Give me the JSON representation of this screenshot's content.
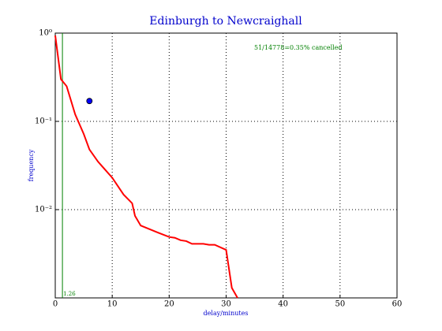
{
  "chart_data": {
    "type": "line",
    "title": "Edinburgh to Newcraighall",
    "xlabel": "delay/minutes",
    "ylabel": "frequency",
    "x": [
      0,
      1,
      2,
      3.5,
      5,
      6,
      7.5,
      10,
      12,
      13.5,
      14,
      15,
      18,
      20,
      21,
      22,
      23,
      24,
      26,
      27,
      28,
      30,
      31,
      32
    ],
    "values": [
      0.94,
      0.3,
      0.25,
      0.12,
      0.072,
      0.048,
      0.035,
      0.023,
      0.0148,
      0.0118,
      0.0085,
      0.0066,
      0.0055,
      0.0049,
      0.0048,
      0.0045,
      0.0044,
      0.0041,
      0.0041,
      0.004,
      0.004,
      0.0035,
      0.0013,
      0.001
    ],
    "color": "#ff0000",
    "marker": {
      "x": 6,
      "y": 0.17,
      "color": "#0000ff"
    },
    "vline": {
      "x": 1.26,
      "color": "#008000"
    },
    "annotation": "51/14778=0.35% cancelled",
    "xlim": [
      0,
      60
    ],
    "xticks": [
      0,
      10,
      20,
      30,
      40,
      50,
      60
    ],
    "ylim": [
      0.001,
      1
    ],
    "yticks": [
      {
        "value": 1,
        "label": "10⁰"
      },
      {
        "value": 0.1,
        "label": "10⁻¹"
      },
      {
        "value": 0.01,
        "label": "10⁻²"
      }
    ],
    "yscale": "log",
    "grid": true
  }
}
